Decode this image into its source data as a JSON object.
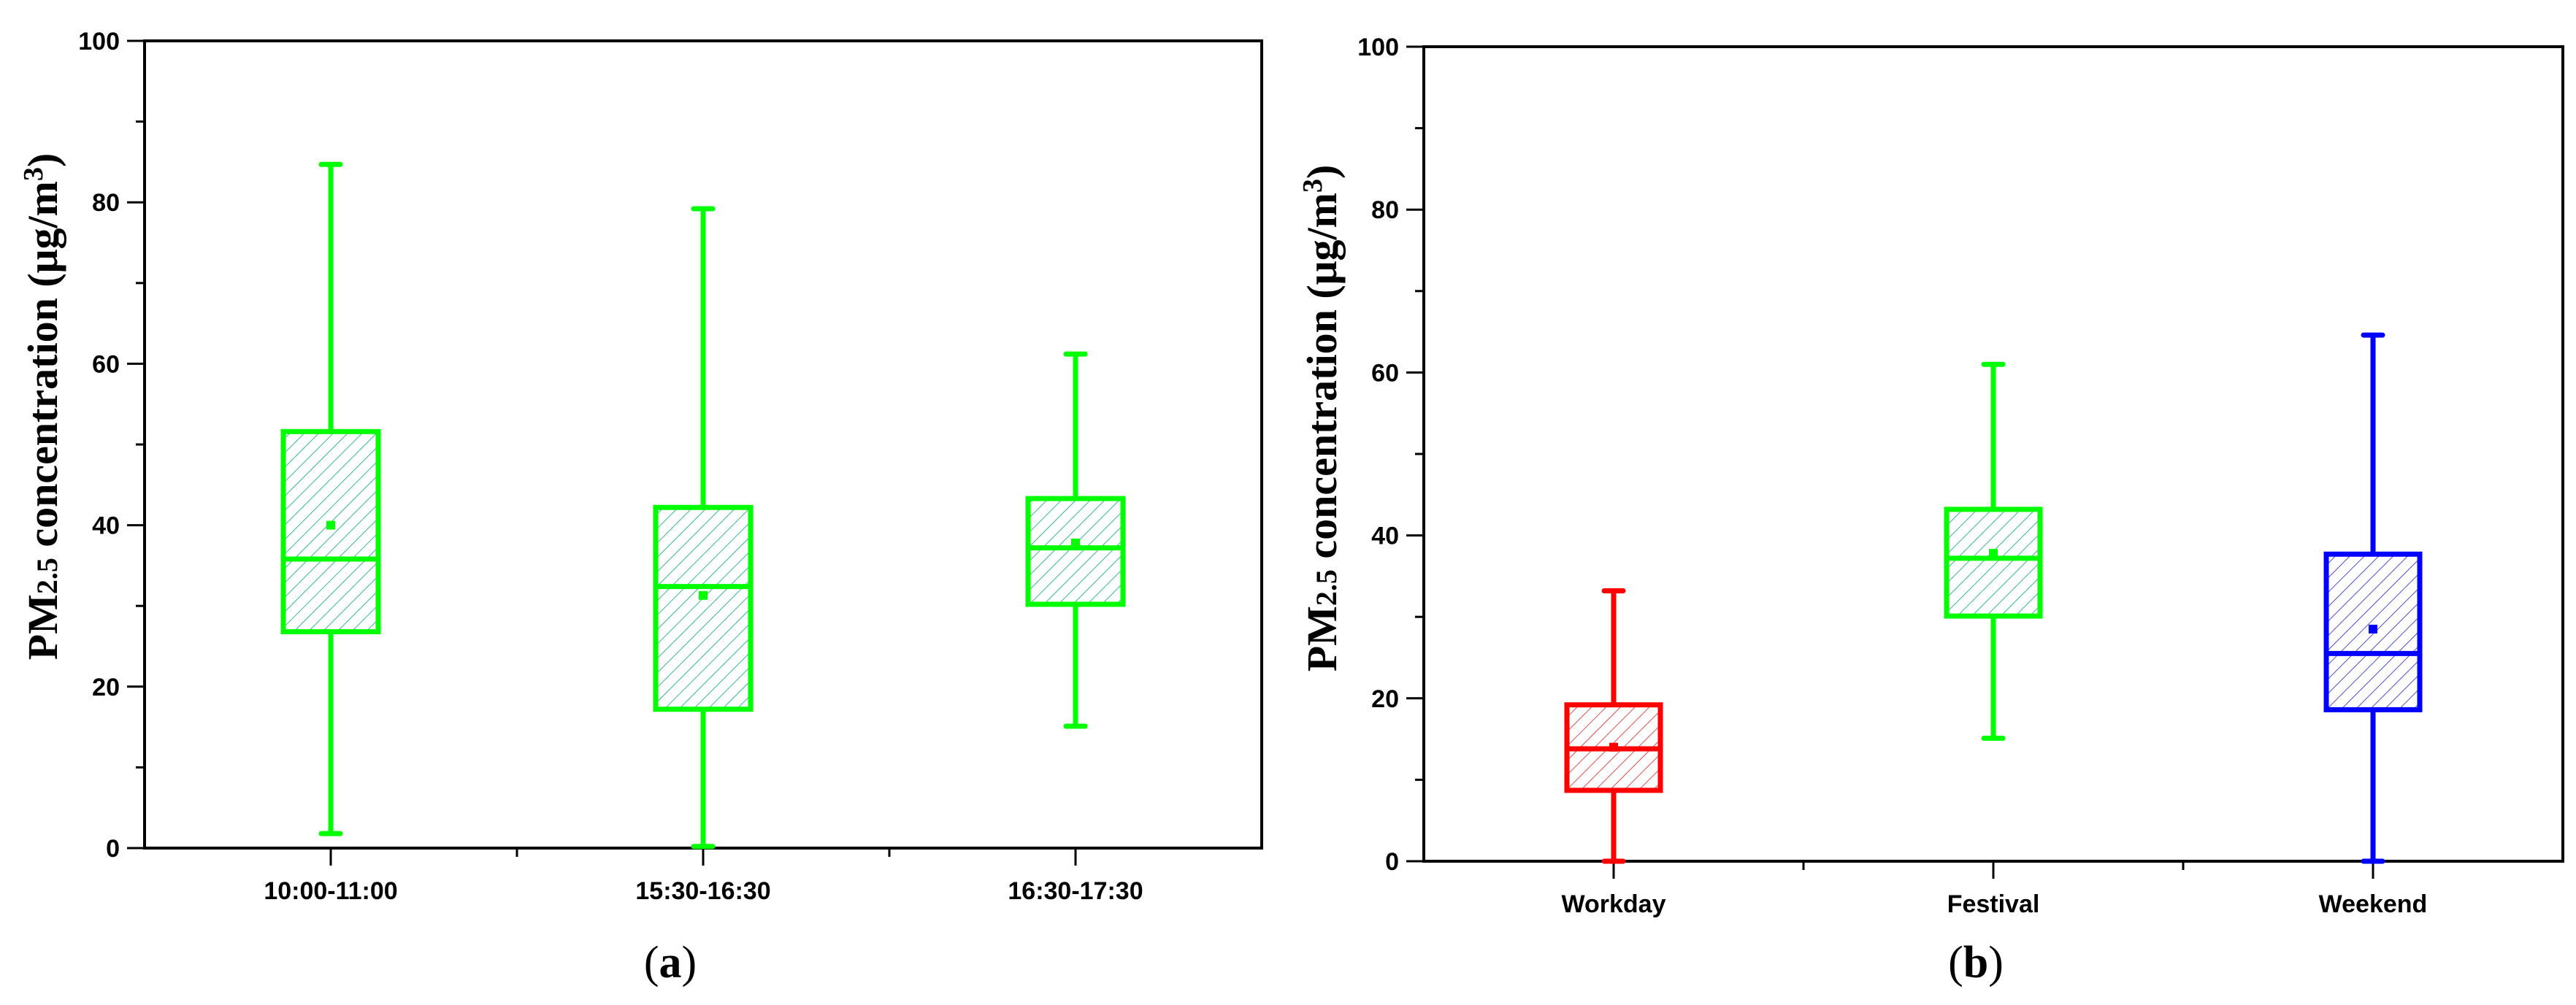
{
  "chart_data": [
    {
      "type": "box",
      "panel_label": "a",
      "ylabel": {
        "prefix": "PM",
        "sub": "2.5",
        "main": " concentration (μg/m",
        "sup": "3",
        "close": ")"
      },
      "ylim": [
        0,
        100
      ],
      "yticks": [
        0,
        20,
        40,
        60,
        80,
        100
      ],
      "grid": false,
      "legend": false,
      "categories": [
        "10:00-11:00",
        "15:30-16:30",
        "16:30-17:30"
      ],
      "boxes": [
        {
          "category": "10:00-11:00",
          "min": 1.8,
          "q1": 26.8,
          "median": 35.8,
          "q3": 51.6,
          "max": 84.7,
          "mean": 40.0,
          "color": "#00ff00",
          "hatch": "#00aa66"
        },
        {
          "category": "15:30-16:30",
          "min": 0.2,
          "q1": 17.2,
          "median": 32.4,
          "q3": 42.2,
          "max": 79.2,
          "mean": 31.3,
          "color": "#00ff00",
          "hatch": "#00aa66"
        },
        {
          "category": "16:30-17:30",
          "min": 15.1,
          "q1": 30.2,
          "median": 37.2,
          "q3": 43.3,
          "max": 61.2,
          "mean": 37.8,
          "color": "#00ff00",
          "hatch": "#00aa66"
        }
      ]
    },
    {
      "type": "box",
      "panel_label": "b",
      "ylabel": {
        "prefix": "PM",
        "sub": "2.5",
        "main": " concentration (μg/m",
        "sup": "3",
        "close": ")"
      },
      "ylim": [
        0,
        100
      ],
      "yticks": [
        0,
        20,
        40,
        60,
        80,
        100
      ],
      "grid": false,
      "legend": false,
      "categories": [
        "Workday",
        "Festival",
        "Weekend"
      ],
      "boxes": [
        {
          "category": "Workday",
          "min": 0.0,
          "q1": 8.7,
          "median": 13.8,
          "q3": 19.2,
          "max": 33.2,
          "mean": 14.0,
          "color": "#ff0000",
          "hatch": "#dd2222"
        },
        {
          "category": "Festival",
          "min": 15.1,
          "q1": 30.1,
          "median": 37.2,
          "q3": 43.2,
          "max": 61.0,
          "mean": 37.8,
          "color": "#00ff00",
          "hatch": "#00aa66"
        },
        {
          "category": "Weekend",
          "min": 0.0,
          "q1": 18.6,
          "median": 25.5,
          "q3": 37.7,
          "max": 64.6,
          "mean": 28.5,
          "color": "#0000ff",
          "hatch": "#2222cc"
        }
      ]
    }
  ]
}
